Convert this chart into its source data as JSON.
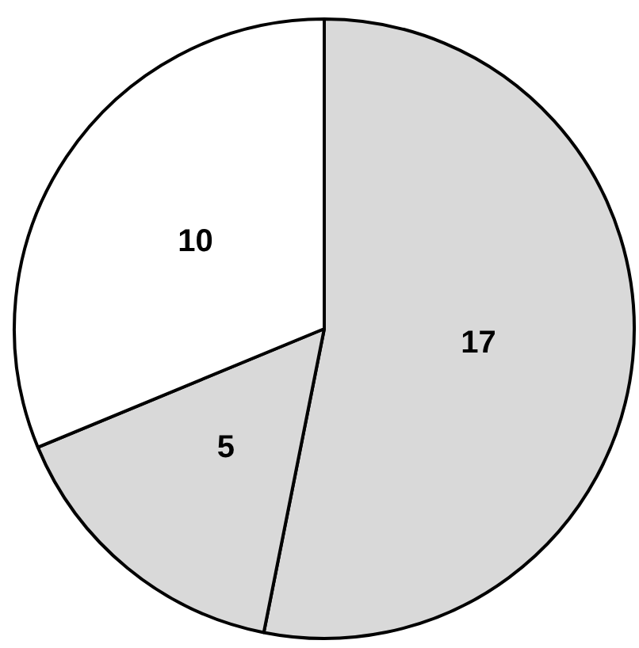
{
  "chart_data": {
    "type": "pie",
    "categories": [
      null,
      null,
      null
    ],
    "values": [
      17,
      5,
      10
    ],
    "colors": [
      "#d9d9d9",
      "#d9d9d9",
      "#ffffff"
    ],
    "data_labels": true,
    "legend": false
  }
}
